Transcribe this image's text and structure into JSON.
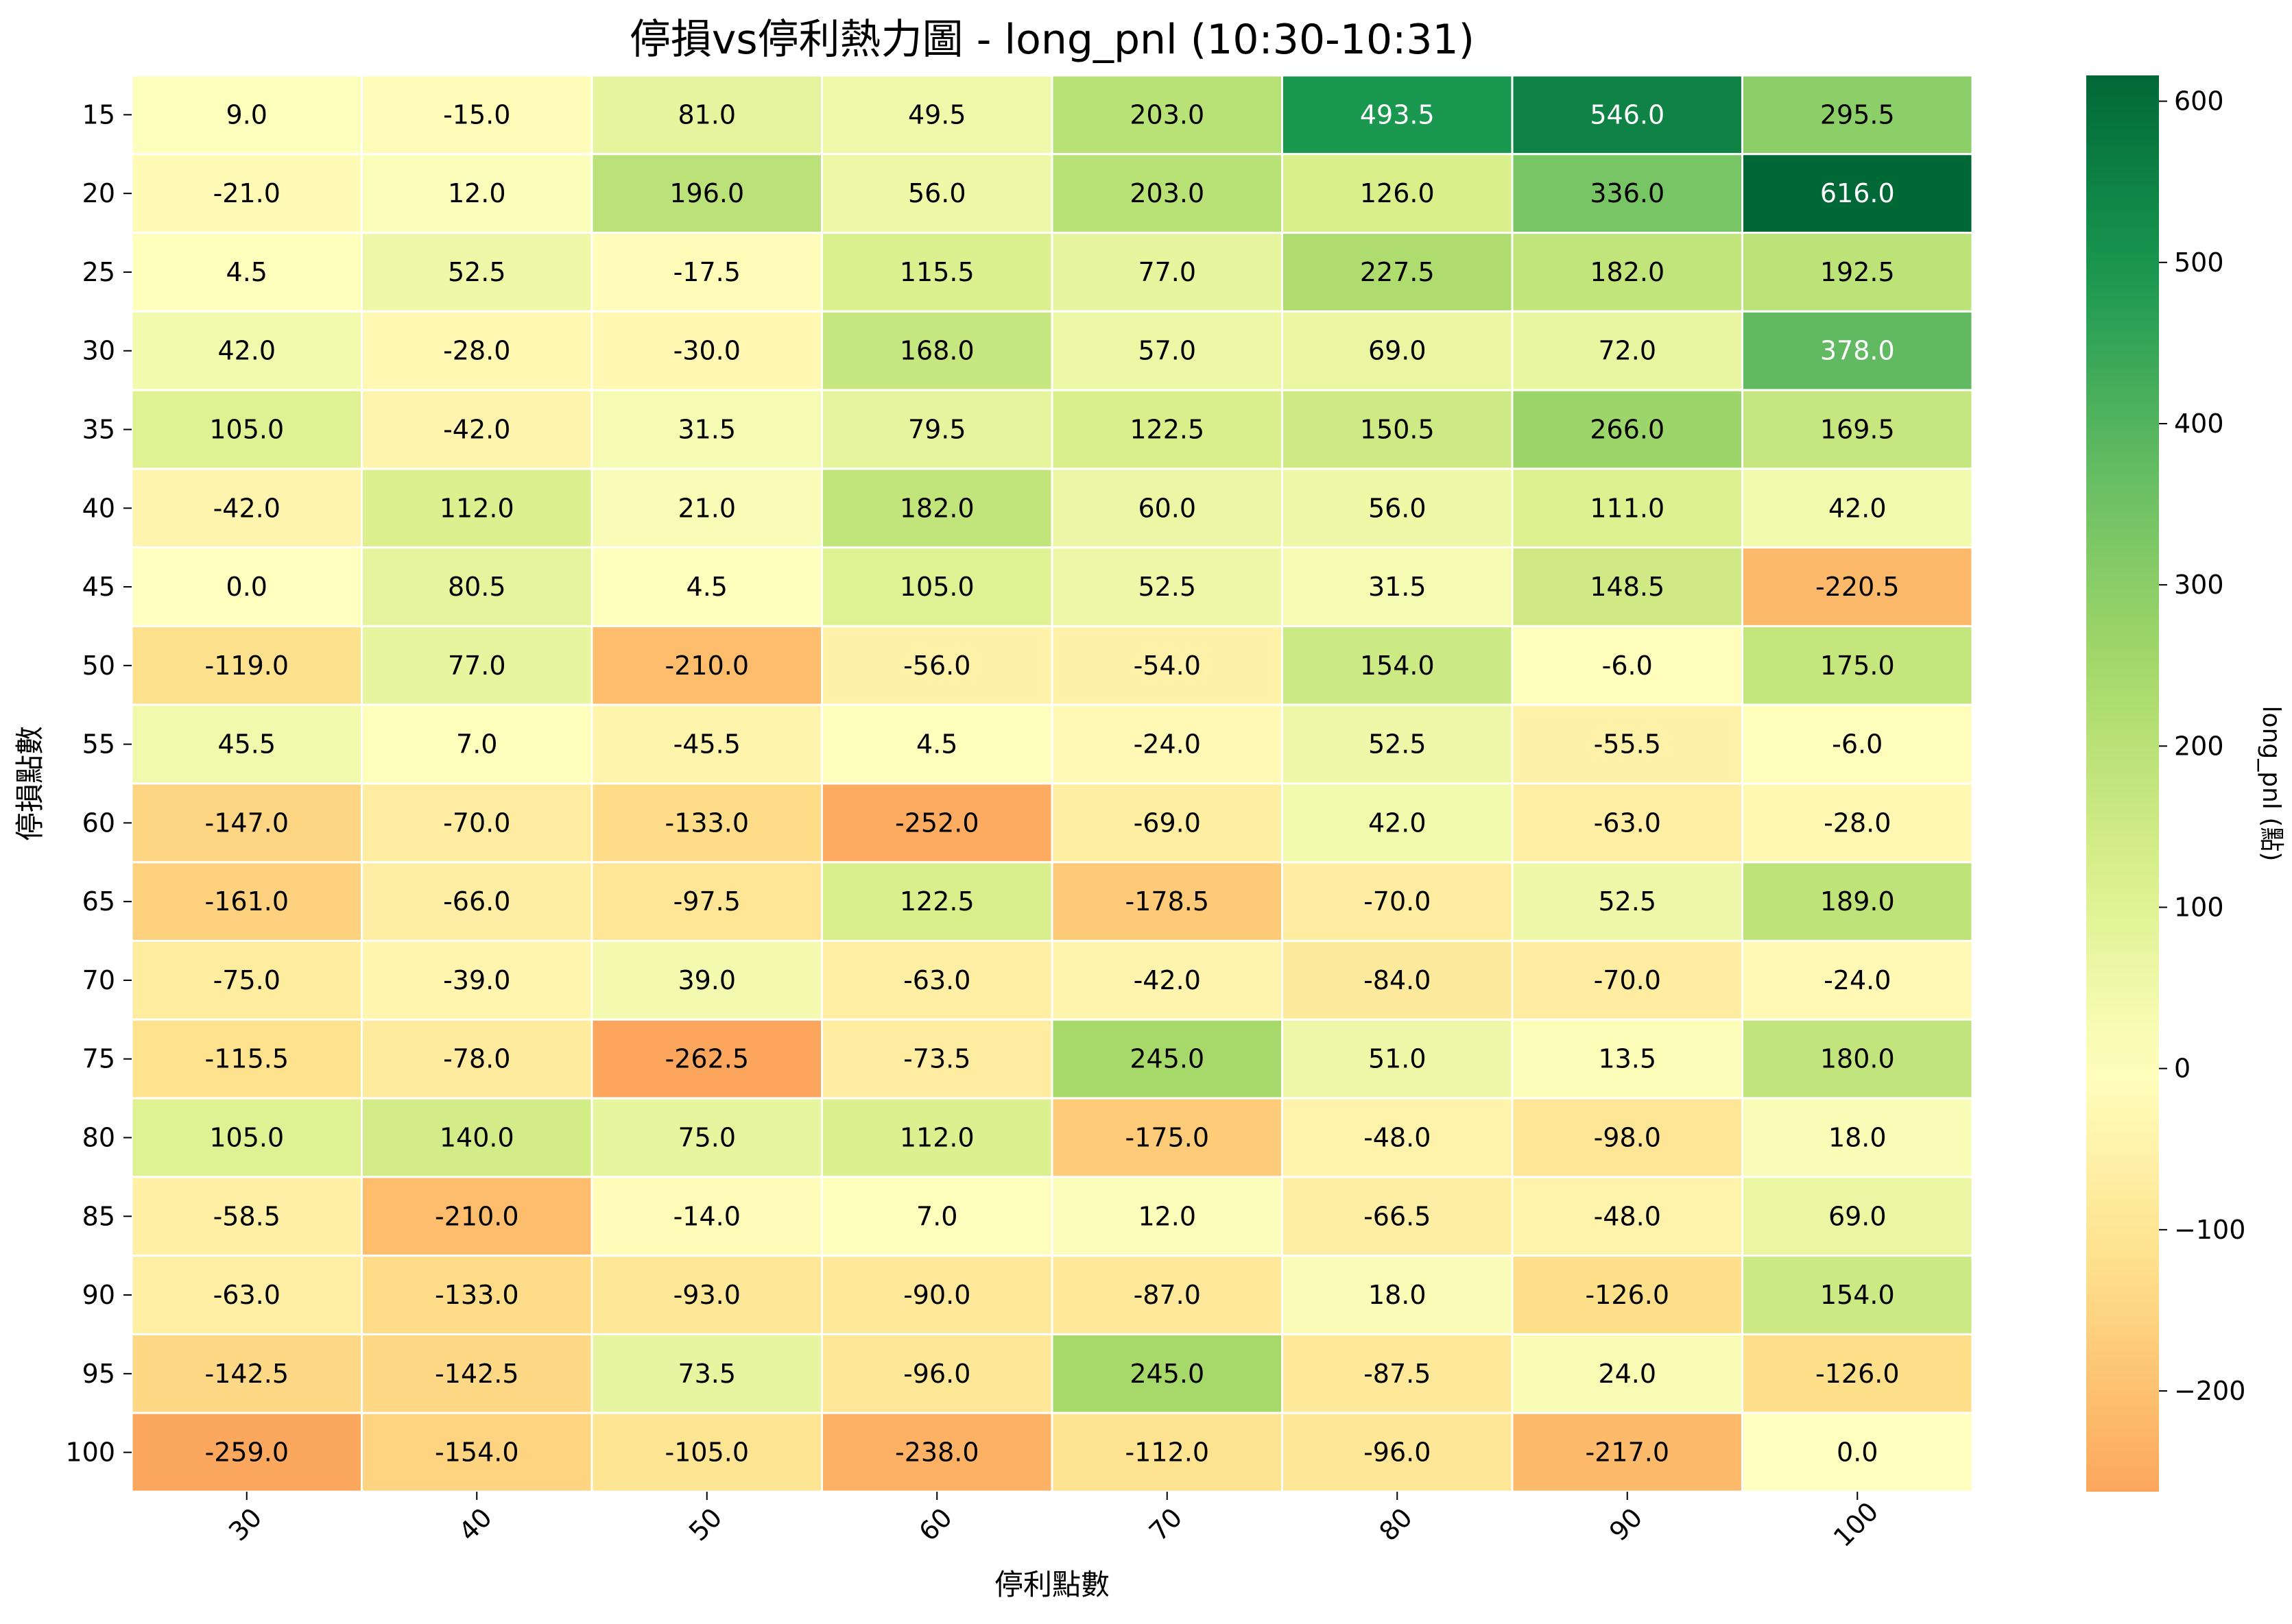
{
  "chart_data": {
    "type": "heatmap",
    "title": "停損vs停利熱力圖 - long_pnl (10:30-10:31)",
    "xlabel": "停利點數",
    "ylabel": "停損點數",
    "x": [
      "30",
      "40",
      "50",
      "60",
      "70",
      "80",
      "90",
      "100"
    ],
    "y": [
      "15",
      "20",
      "25",
      "30",
      "35",
      "40",
      "45",
      "50",
      "55",
      "60",
      "65",
      "70",
      "75",
      "80",
      "85",
      "90",
      "95",
      "100"
    ],
    "values": [
      [
        9.0,
        -15.0,
        81.0,
        49.5,
        203.0,
        493.5,
        546.0,
        295.5
      ],
      [
        -21.0,
        12.0,
        196.0,
        56.0,
        203.0,
        126.0,
        336.0,
        616.0
      ],
      [
        4.5,
        52.5,
        -17.5,
        115.5,
        77.0,
        227.5,
        182.0,
        192.5
      ],
      [
        42.0,
        -28.0,
        -30.0,
        168.0,
        57.0,
        69.0,
        72.0,
        378.0
      ],
      [
        105.0,
        -42.0,
        31.5,
        79.5,
        122.5,
        150.5,
        266.0,
        169.5
      ],
      [
        -42.0,
        112.0,
        21.0,
        182.0,
        60.0,
        56.0,
        111.0,
        42.0
      ],
      [
        0.0,
        80.5,
        4.5,
        105.0,
        52.5,
        31.5,
        148.5,
        -220.5
      ],
      [
        -119.0,
        77.0,
        -210.0,
        -56.0,
        -54.0,
        154.0,
        -6.0,
        175.0
      ],
      [
        45.5,
        7.0,
        -45.5,
        4.5,
        -24.0,
        52.5,
        -55.5,
        -6.0
      ],
      [
        -147.0,
        -70.0,
        -133.0,
        -252.0,
        -69.0,
        42.0,
        -63.0,
        -28.0
      ],
      [
        -161.0,
        -66.0,
        -97.5,
        122.5,
        -178.5,
        -70.0,
        52.5,
        189.0
      ],
      [
        -75.0,
        -39.0,
        39.0,
        -63.0,
        -42.0,
        -84.0,
        -70.0,
        -24.0
      ],
      [
        -115.5,
        -78.0,
        -262.5,
        -73.5,
        245.0,
        51.0,
        13.5,
        180.0
      ],
      [
        105.0,
        140.0,
        75.0,
        112.0,
        -175.0,
        -48.0,
        -98.0,
        18.0
      ],
      [
        -58.5,
        -210.0,
        -14.0,
        7.0,
        12.0,
        -66.5,
        -48.0,
        69.0
      ],
      [
        -63.0,
        -133.0,
        -93.0,
        -90.0,
        -87.0,
        18.0,
        -126.0,
        154.0
      ],
      [
        -142.5,
        -142.5,
        73.5,
        -96.0,
        245.0,
        -87.5,
        24.0,
        -126.0
      ],
      [
        -259.0,
        -154.0,
        -105.0,
        -238.0,
        -112.0,
        -96.0,
        -217.0,
        0.0
      ]
    ],
    "colormap": "RdYlGn (centered at 0)",
    "vmin": -262.5,
    "vmax": 616.0,
    "colorbar": {
      "label": "long_pnl (點)",
      "ticks": [
        -200,
        -100,
        0,
        100,
        200,
        300,
        400,
        500,
        600
      ],
      "tick_labels": [
        "−200",
        "−100",
        "0",
        "100",
        "200",
        "300",
        "400",
        "500",
        "600"
      ]
    },
    "value_format": "one decimal"
  }
}
